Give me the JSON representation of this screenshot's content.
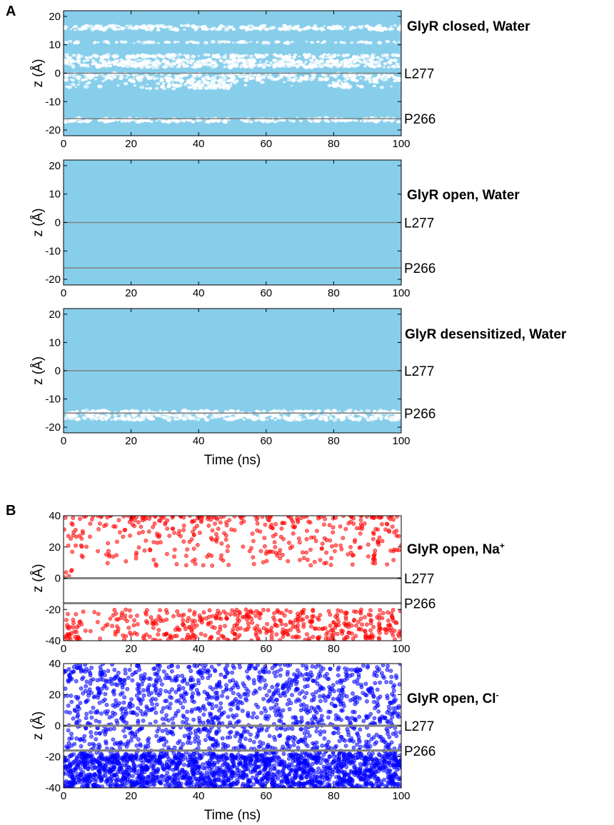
{
  "panel_labels": [
    "A",
    "B"
  ],
  "colors": {
    "water": "#87ceeb",
    "na": "#ff0000",
    "cl": "#0000ff",
    "ref_line": "#808080",
    "frame": "#000000"
  },
  "chart_data": [
    {
      "type": "scatter",
      "panel": "A",
      "title": "GlyR closed, Water",
      "ylabel": "z (Å)",
      "xlabel": "",
      "xlim": [
        0,
        100
      ],
      "ylim": [
        -22,
        22
      ],
      "xticks": [
        "0",
        "20",
        "40",
        "60",
        "80",
        "100"
      ],
      "yticks": [
        "20",
        "10",
        "0",
        "-10",
        "-20"
      ],
      "reference_lines": [
        {
          "name": "L277",
          "z": 0
        },
        {
          "name": "P266",
          "z": -16
        }
      ],
      "series": [
        {
          "color": "#87ceeb",
          "coverage": "dense",
          "gaps_z": [
            [
              15.2,
              16.8
            ],
            [
              10.6,
              11.2
            ],
            [
              5.4,
              6.6
            ],
            [
              2.0,
              4.8
            ],
            [
              -2.5,
              0
            ],
            [
              -5.5,
              -2.5
            ],
            [
              -17.2,
              -15.8
            ]
          ]
        }
      ]
    },
    {
      "type": "scatter",
      "panel": "A",
      "title": "GlyR open, Water",
      "ylabel": "z (Å)",
      "xlabel": "",
      "xlim": [
        0,
        100
      ],
      "ylim": [
        -22,
        22
      ],
      "xticks": [
        "0",
        "20",
        "40",
        "60",
        "80",
        "100"
      ],
      "yticks": [
        "20",
        "10",
        "0",
        "-10",
        "-20"
      ],
      "reference_lines": [
        {
          "name": "L277",
          "z": 0
        },
        {
          "name": "P266",
          "z": -16
        }
      ],
      "series": [
        {
          "color": "#87ceeb",
          "coverage": "full"
        }
      ]
    },
    {
      "type": "scatter",
      "panel": "A",
      "title": "GlyR desensitized, Water",
      "ylabel": "z (Å)",
      "xlabel": "Time (ns)",
      "xlim": [
        0,
        100
      ],
      "ylim": [
        -22,
        22
      ],
      "xticks": [
        "0",
        "20",
        "40",
        "60",
        "80",
        "100"
      ],
      "yticks": [
        "20",
        "10",
        "0",
        "-10",
        "-20"
      ],
      "reference_lines": [
        {
          "name": "L277",
          "z": 0
        },
        {
          "name": "P266",
          "z": -15
        }
      ],
      "series": [
        {
          "color": "#87ceeb",
          "coverage": "dense",
          "gaps_z": [
            [
              -17.5,
              -14.0
            ]
          ]
        }
      ]
    },
    {
      "type": "scatter",
      "panel": "B",
      "title": "GlyR open, Na",
      "title_superscript": "+",
      "ylabel": "z (Å)",
      "xlabel": "",
      "xlim": [
        0,
        100
      ],
      "ylim": [
        -40,
        40
      ],
      "xticks": [
        "0",
        "20",
        "40",
        "60",
        "80",
        "100"
      ],
      "yticks": [
        "40",
        "20",
        "0",
        "-20",
        "-40"
      ],
      "reference_lines": [
        {
          "name": "L277",
          "z": 0
        },
        {
          "name": "P266",
          "z": -16
        }
      ],
      "series": [
        {
          "color": "#ff0000",
          "upper_band_z": [
            8,
            40
          ],
          "lower_band_z": [
            -40,
            -20
          ]
        }
      ]
    },
    {
      "type": "scatter",
      "panel": "B",
      "title": "GlyR open, Cl",
      "title_superscript": "-",
      "ylabel": "z (Å)",
      "xlabel": "Time (ns)",
      "xlim": [
        0,
        100
      ],
      "ylim": [
        -40,
        40
      ],
      "xticks": [
        "0",
        "20",
        "40",
        "60",
        "80",
        "100"
      ],
      "yticks": [
        "40",
        "20",
        "0",
        "-20",
        "-40"
      ],
      "reference_lines": [
        {
          "name": "L277",
          "z": 0
        },
        {
          "name": "P266",
          "z": -16
        }
      ],
      "series": [
        {
          "color": "#0000ff",
          "z_range": [
            -40,
            40
          ],
          "dense_band_z": [
            -40,
            -18
          ]
        }
      ]
    }
  ]
}
